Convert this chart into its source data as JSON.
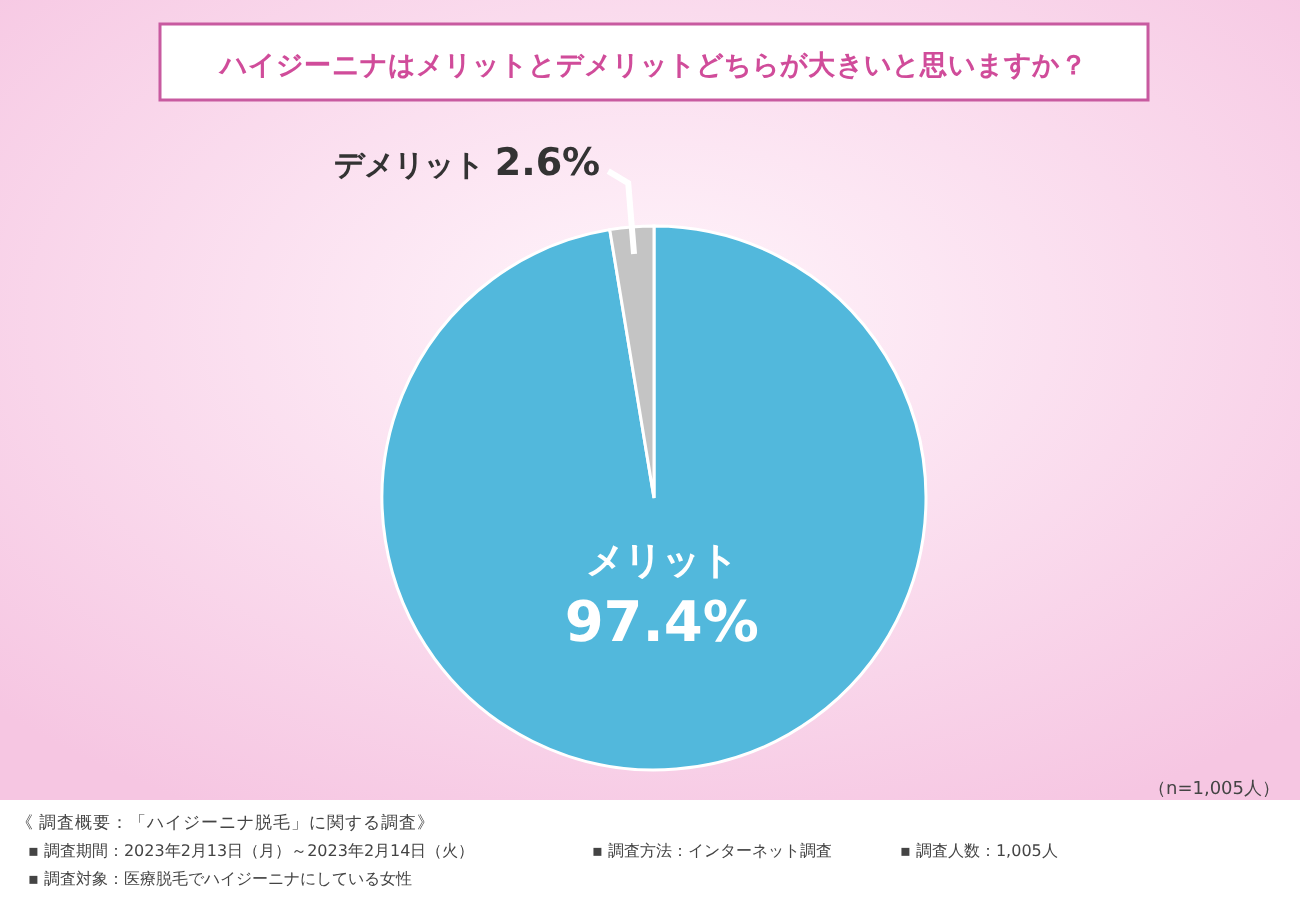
{
  "chart_data": {
    "type": "pie",
    "title": "ハイジーニナはメリットとデメリットどちらが大きいと思いますか？",
    "categories": [
      "メリット",
      "デメリット"
    ],
    "values": [
      97.4,
      2.6
    ],
    "colors": [
      "#52b8dc",
      "#c4c4c4"
    ],
    "value_labels": [
      "97.4%",
      "2.6%"
    ],
    "annotations": [
      "（n=1,005人）",
      "《 調査概要：「ハイジーニナ脱毛」に関する調査》",
      "▪ 調査期間：2023年2月13日（月）～2023年2月14日（火）",
      "▪ 調査方法：インターネット調査",
      "▪ 調査人数：1,005人",
      "▪ 調査対象：医療脱毛でハイジーニナにしている女性"
    ]
  }
}
